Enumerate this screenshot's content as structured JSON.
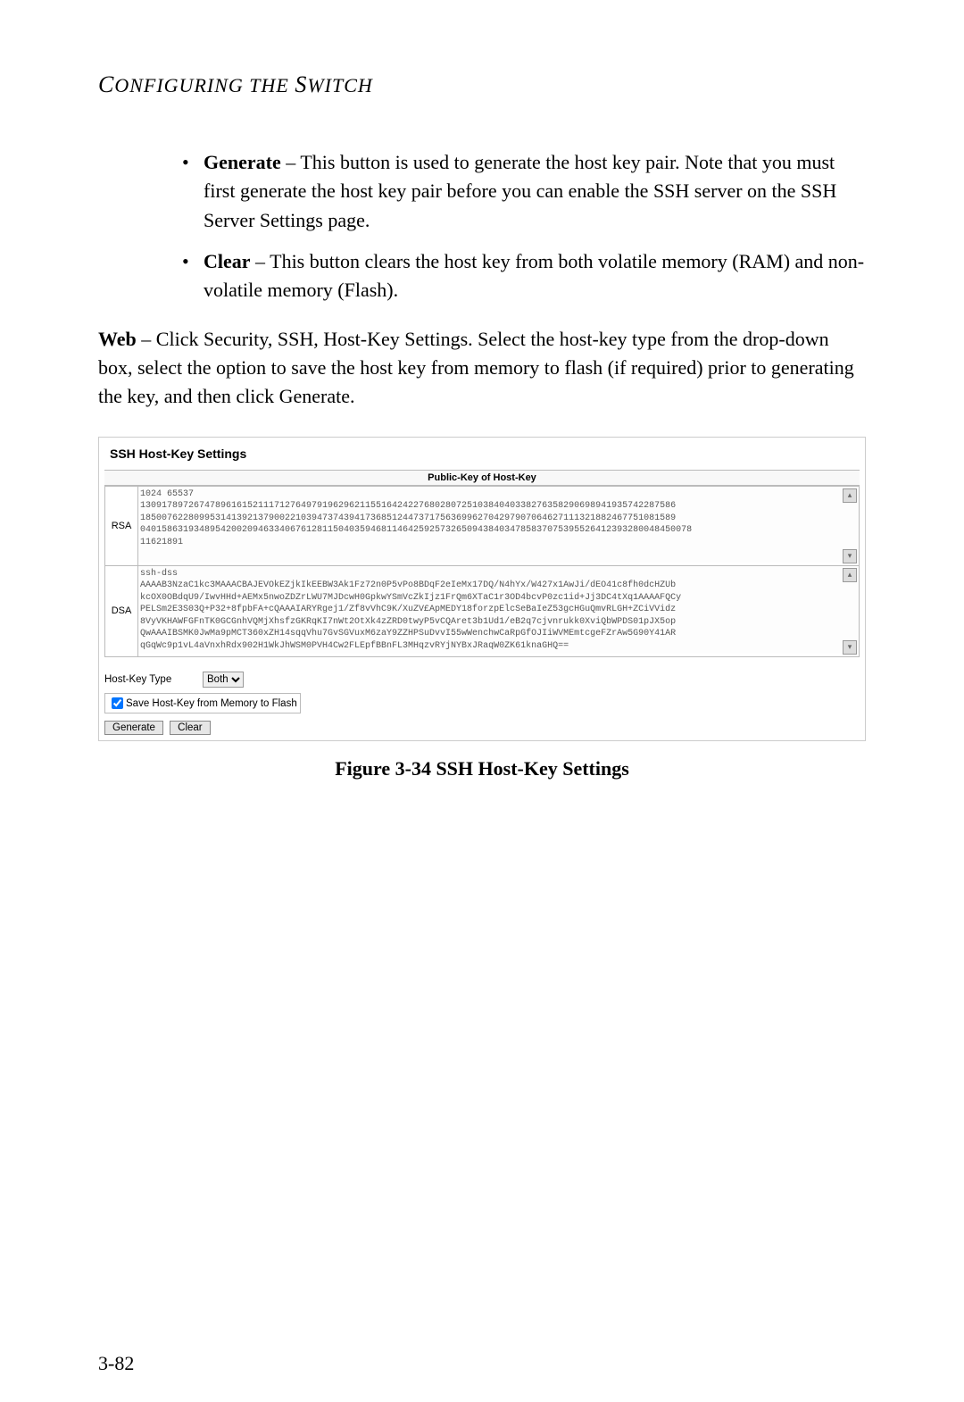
{
  "header": {
    "text": "CONFIGURING THE SWITCH"
  },
  "bullets": [
    {
      "term": "Generate",
      "rest": " – This button is used to generate the host key pair. Note that you must first generate the host key pair before you can enable the SSH server on the SSH Server Settings page."
    },
    {
      "term": "Clear",
      "rest": " – This button clears the host key from both volatile memory (RAM) and non-volatile memory (Flash)."
    }
  ],
  "web_para": {
    "lead": "Web",
    "rest": " – Click Security, SSH, Host-Key Settings. Select the host-key type from the drop-down box, select the option to save the host key from memory to flash (if required) prior to generating the key, and then click Generate."
  },
  "figure": {
    "panel_title": "SSH Host-Key Settings",
    "pubkey_header": "Public-Key of Host-Key",
    "rows": [
      {
        "label": "RSA",
        "key": "1024 65537\n1309178972674789616152111712764979196296211551642422768028072510384040338276358290698941935742287586\n1850076228099531413921379002210394737439417368512447371756369962704297907064627111321882467751081589\n0401586319348954200209463340676128115040359468114642592573265094384034785837075395526412393280048450078\n11621891"
      },
      {
        "label": "DSA",
        "key": "ssh-dss\nAAAAB3NzaC1kc3MAAACBAJEVOkEZjkIkEEBW3Ak1Fz72n0P5vPo8BDqF2eIeMx17DQ/N4hYx/W427x1AwJi/dEO41c8fh0dcHZUb\nkcOX0OBdqU9/IwvHHd+AEMx5nwoZDZrLWU7MJDcwH0GpkwYSmVcZkIjz1FrQm6XTaC1r3OD4bcvP0zc1id+Jj3DC4tXq1AAAAFQCy\nPELSm2E3S03Q+P32+8fpbFA+cQAAAIARYRgej1/Zf8vVhC9K/XuZV£ApMEDY18forzpElcSeBaIeZ53gcHGuQmvRLGH+ZCiVVidz\n8VyVKHAWFGFnTK0GCGnhVQMjXhsfzGKRqKI7nWt2OtXk4zZRD0twyP5vCQAret3b1Ud1/eB2q7cjvnrukk0XviQbWPDS01pJX5op\nQwAAAIBSMK0JwMa9pMCT360xZH14sqqVhu7GvSGVuxM6zaY9ZZHPSuDvvI55wWenchwCaRpGfOJIiWVMEmtcgeFZrAw5G90Y41AR\nqGqWc9p1vL4aVnxhRdx902H1WkJhWSM0PVH4Cw2FLEpfBBnFL3MHqzvRYjNYBxJRaqW0ZK61knaGHQ=="
      }
    ],
    "host_key_type_label": "Host-Key Type",
    "host_key_type_value": "Both",
    "save_checkbox_label": "Save Host-Key from Memory to Flash",
    "save_checkbox_checked": true,
    "buttons": {
      "generate": "Generate",
      "clear": "Clear"
    }
  },
  "figure_caption": "Figure 3-34   SSH Host-Key Settings",
  "page_number": "3-82",
  "rsa_rows": 6,
  "dsa_rows": 7
}
